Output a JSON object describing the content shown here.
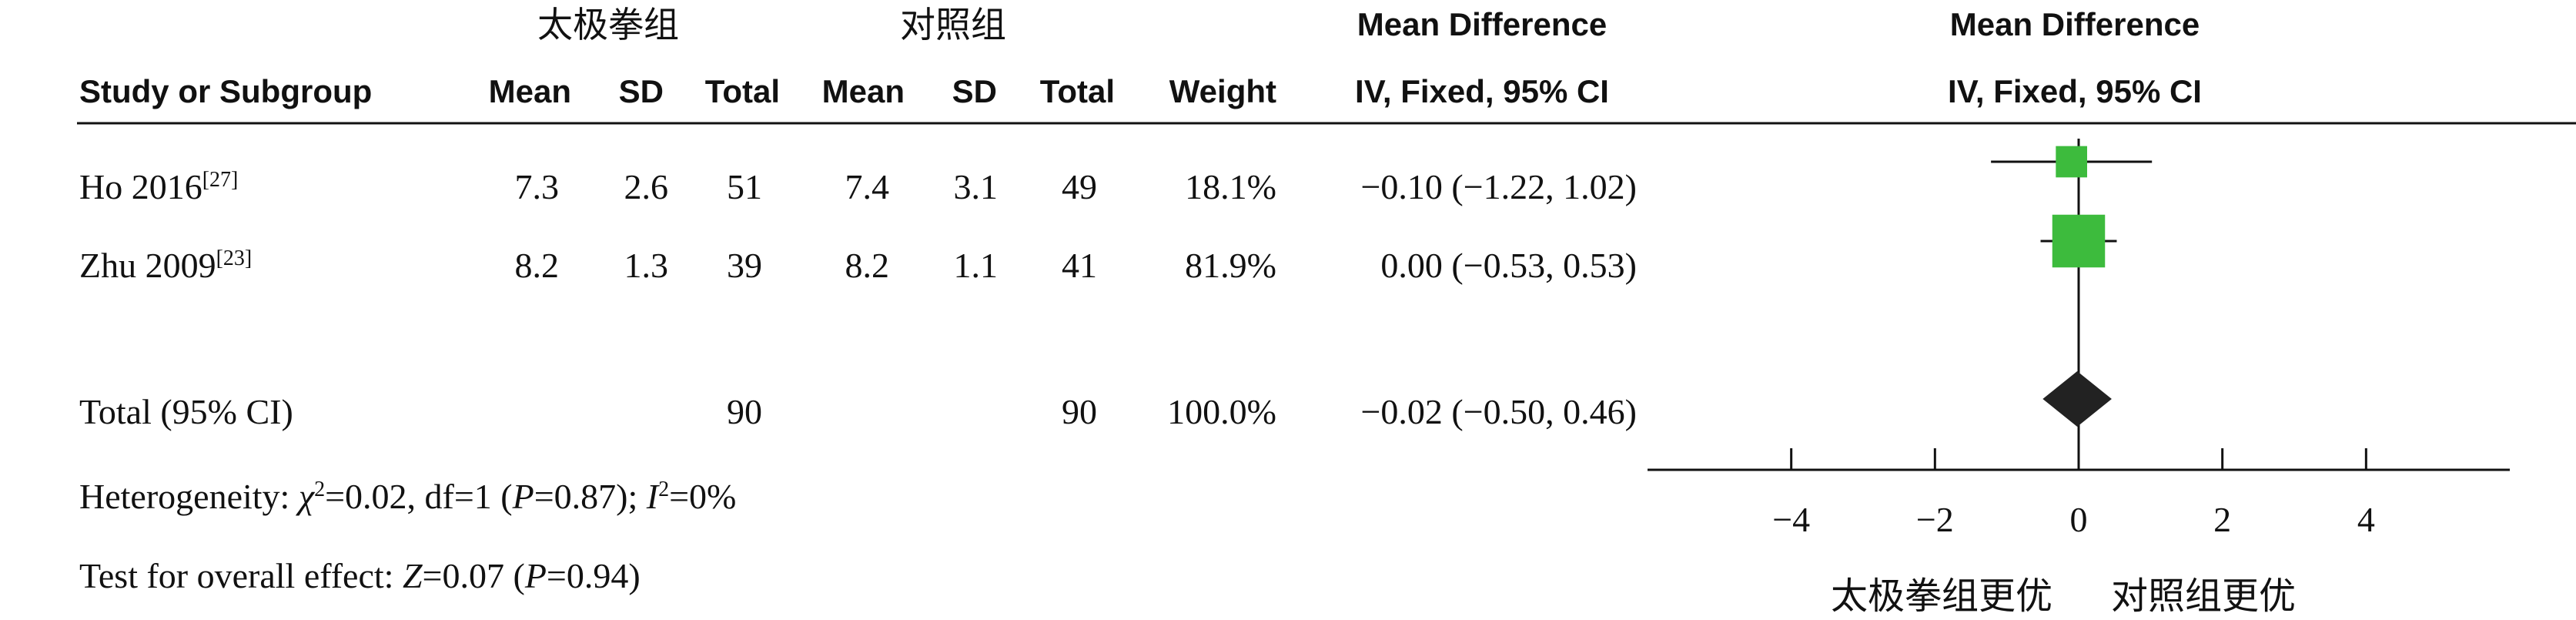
{
  "colors": {
    "box": "#3dbb3d",
    "diamond": "#222222",
    "text": "#111111"
  },
  "header": {
    "group_exp": "太极拳组",
    "group_ctl": "对照组",
    "md_title": "Mean Difference",
    "md_method": "IV, Fixed, 95% CI",
    "plot_title": "Mean Difference",
    "plot_method": "IV, Fixed, 95% CI",
    "col_study": "Study or Subgroup",
    "col_mean_e": "Mean",
    "col_sd_e": "SD",
    "col_total_e": "Total",
    "col_mean_c": "Mean",
    "col_sd_c": "SD",
    "col_total_c": "Total",
    "col_weight": "Weight"
  },
  "studies": [
    {
      "name": "Ho 2016",
      "ref": "[27]",
      "mean_e": "7.3",
      "sd_e": "2.6",
      "total_e": "51",
      "mean_c": "7.4",
      "sd_c": "3.1",
      "total_c": "49",
      "weight": "18.1%",
      "ci_text": "−0.10 (−1.22, 1.02)"
    },
    {
      "name": "Zhu 2009",
      "ref": "[23]",
      "mean_e": "8.2",
      "sd_e": "1.3",
      "total_e": "39",
      "mean_c": "8.2",
      "sd_c": "1.1",
      "total_c": "41",
      "weight": "81.9%",
      "ci_text": "0.00 (−0.53, 0.53)"
    }
  ],
  "total": {
    "label": "Total (95% CI)",
    "total_e": "90",
    "total_c": "90",
    "weight": "100.0%",
    "ci_text": "−0.02 (−0.50, 0.46)"
  },
  "heterogeneity": {
    "prefix": "Heterogeneity: ",
    "chi": "χ",
    "chi_rest": "=0.02, df=1 (",
    "p": "P",
    "p_rest": "=0.87); ",
    "i": "I",
    "i_rest": "=0%",
    "sup2": "2"
  },
  "overall": {
    "prefix": "Test for overall effect: ",
    "z": "Z",
    "z_rest": "=0.07 (",
    "p": "P",
    "p_rest": "=0.94)"
  },
  "axis": {
    "favours_left": "太极拳组更优",
    "favours_right": "对照组更优"
  },
  "chart_data": {
    "type": "forest",
    "x_range": [
      -6,
      6
    ],
    "ticks": [
      -4,
      -2,
      0,
      2,
      4
    ],
    "tick_labels": [
      "−4",
      "−2",
      "0",
      "2",
      "4"
    ],
    "studies": [
      {
        "name": "Ho 2016",
        "md": -0.1,
        "lo": -1.22,
        "hi": 1.02,
        "weight": 18.1
      },
      {
        "name": "Zhu 2009",
        "md": 0.0,
        "lo": -0.53,
        "hi": 0.53,
        "weight": 81.9
      }
    ],
    "pooled": {
      "md": -0.02,
      "lo": -0.5,
      "hi": 0.46
    }
  }
}
